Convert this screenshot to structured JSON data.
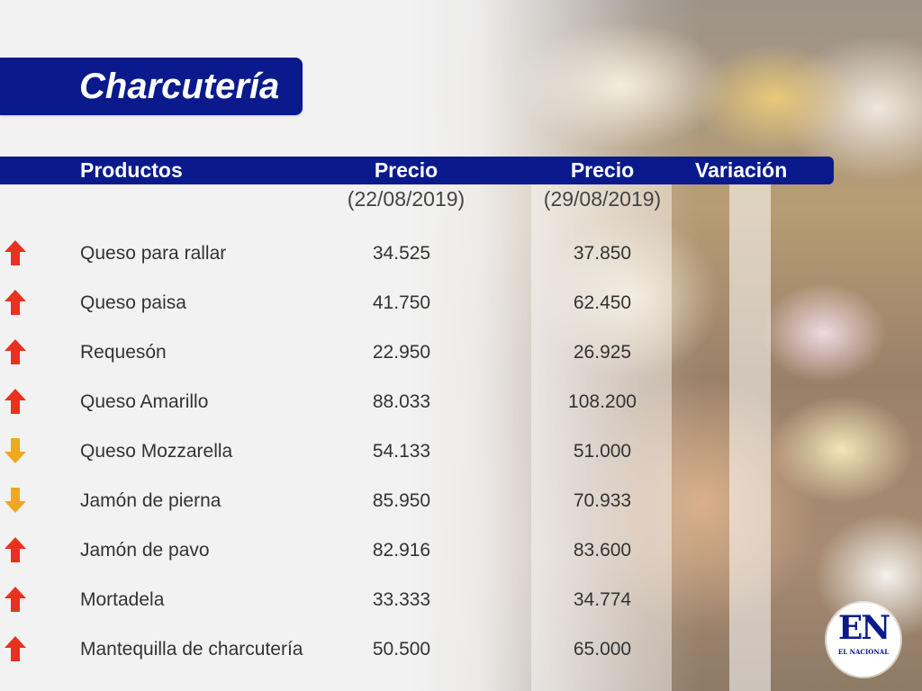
{
  "title": "Charcutería",
  "headers": {
    "products": "Productos",
    "price1": "Precio",
    "price1_date": "(22/08/2019)",
    "price2": "Precio",
    "price2_date": "(29/08/2019)",
    "variation": "Variación"
  },
  "colors": {
    "banner": "#0a1a8c",
    "arrow_up": "#e8321e",
    "arrow_down": "#f0a81e"
  },
  "rows": [
    {
      "product": "Queso para rallar",
      "price1": "34.525",
      "price2": "37.850",
      "variation": "up"
    },
    {
      "product": "Queso paisa",
      "price1": "41.750",
      "price2": "62.450",
      "variation": "up"
    },
    {
      "product": "Requesón",
      "price1": "22.950",
      "price2": "26.925",
      "variation": "up"
    },
    {
      "product": "Queso Amarillo",
      "price1": "88.033",
      "price2": "108.200",
      "variation": "up"
    },
    {
      "product": "Queso Mozzarella",
      "price1": "54.133",
      "price2": "51.000",
      "variation": "down"
    },
    {
      "product": "Jamón de pierna",
      "price1": "85.950",
      "price2": "70.933",
      "variation": "down"
    },
    {
      "product": "Jamón de pavo",
      "price1": "82.916",
      "price2": "83.600",
      "variation": "up"
    },
    {
      "product": "Mortadela",
      "price1": "33.333",
      "price2": "34.774",
      "variation": "up"
    },
    {
      "product": "Mantequilla de charcutería",
      "price1": "50.500",
      "price2": "65.000",
      "variation": "up"
    }
  ],
  "logo": {
    "letters": "EN",
    "subtitle": "EL NACIONAL"
  }
}
